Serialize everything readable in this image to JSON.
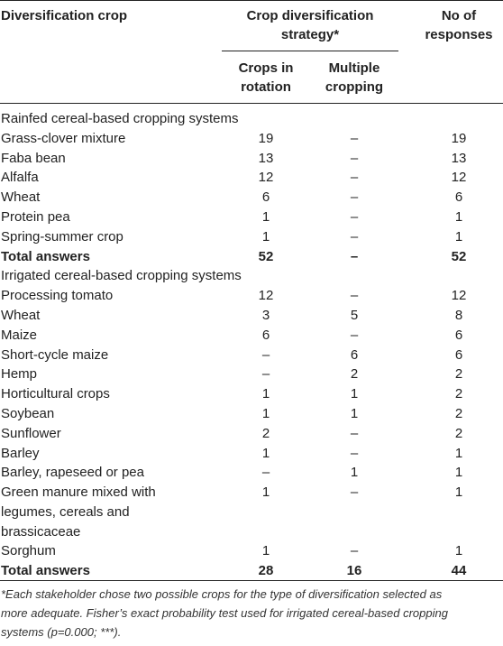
{
  "header": {
    "diversification_crop": "Diversification crop",
    "strategy_group_line1": "Crop diversification",
    "strategy_group_line2": "strategy*",
    "responses_line1": "No of",
    "responses_line2": "responses",
    "crops_in_rotation_line1": "Crops in",
    "crops_in_rotation_line2": "rotation",
    "multiple_cropping_line1": "Multiple",
    "multiple_cropping_line2": "cropping"
  },
  "sections": [
    {
      "title": "Rainfed cereal-based cropping systems",
      "rows": [
        {
          "crop": "Grass-clover mixture",
          "rotation": "19",
          "multiple": "–",
          "responses": "19"
        },
        {
          "crop": "Faba bean",
          "rotation": "13",
          "multiple": "–",
          "responses": "13"
        },
        {
          "crop": "Alfalfa",
          "rotation": "12",
          "multiple": "–",
          "responses": "12"
        },
        {
          "crop": "Wheat",
          "rotation": "6",
          "multiple": "–",
          "responses": "6"
        },
        {
          "crop": "Protein pea",
          "rotation": "1",
          "multiple": "–",
          "responses": "1"
        },
        {
          "crop": "Spring-summer crop",
          "rotation": "1",
          "multiple": "–",
          "responses": "1"
        }
      ],
      "total": {
        "label": "Total answers",
        "rotation": "52",
        "multiple": "–",
        "responses": "52"
      }
    },
    {
      "title": "Irrigated cereal-based cropping systems",
      "rows": [
        {
          "crop": "Processing tomato",
          "rotation": "12",
          "multiple": "–",
          "responses": "12"
        },
        {
          "crop": "Wheat",
          "rotation": "3",
          "multiple": "5",
          "responses": "8"
        },
        {
          "crop": "Maize",
          "rotation": "6",
          "multiple": "–",
          "responses": "6"
        },
        {
          "crop": "Short-cycle maize",
          "rotation": "–",
          "multiple": "6",
          "responses": "6"
        },
        {
          "crop": "Hemp",
          "rotation": "–",
          "multiple": "2",
          "responses": "2"
        },
        {
          "crop": "Horticultural crops",
          "rotation": "1",
          "multiple": "1",
          "responses": "2"
        },
        {
          "crop": "Soybean",
          "rotation": "1",
          "multiple": "1",
          "responses": "2"
        },
        {
          "crop": "Sunflower",
          "rotation": "2",
          "multiple": "–",
          "responses": "2"
        },
        {
          "crop": "Barley",
          "rotation": "1",
          "multiple": "–",
          "responses": "1"
        },
        {
          "crop": "Barley, rapeseed or pea",
          "rotation": "–",
          "multiple": "1",
          "responses": "1"
        },
        {
          "crop_lines": [
            "Green manure mixed with",
            "legumes, cereals and",
            "brassicaceae"
          ],
          "rotation": "1",
          "multiple": "–",
          "responses": "1"
        },
        {
          "crop": "Sorghum",
          "rotation": "1",
          "multiple": "–",
          "responses": "1"
        }
      ],
      "total": {
        "label": "Total answers",
        "rotation": "28",
        "multiple": "16",
        "responses": "44"
      }
    }
  ],
  "footnote": {
    "line1": "*Each stakeholder chose two possible crops for the type of diversification selected as",
    "line2": "more adequate. Fisher’s exact probability test used for irrigated cereal-based cropping",
    "line3": "systems (p=0.000; ***)."
  }
}
